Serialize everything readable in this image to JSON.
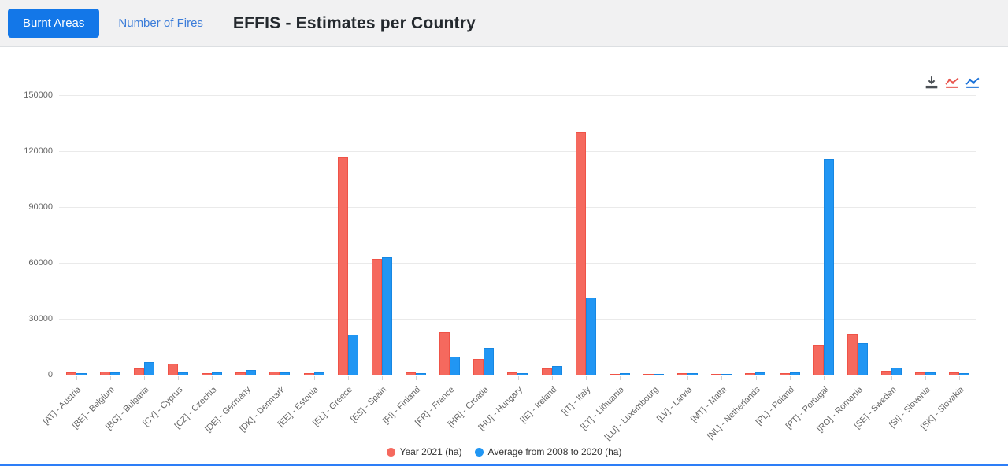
{
  "header": {
    "title": "EFFIS - Estimates per Country",
    "tabs": [
      {
        "label": "Burnt Areas",
        "active": true
      },
      {
        "label": "Number of Fires",
        "active": false
      }
    ]
  },
  "toolbar": {
    "icons": [
      "download-icon",
      "line-chart-red-icon",
      "line-chart-blue-icon"
    ]
  },
  "colors": {
    "accent_blue": "#1377e8",
    "series_red": "#f5695e",
    "series_blue": "#2196f3",
    "header_bg": "#f1f1f2",
    "bottom_bar": "#2d7ef7"
  },
  "chart_data": {
    "type": "bar",
    "title": "EFFIS - Estimates per Country",
    "xlabel": "",
    "ylabel": "",
    "ylim": [
      0,
      150000
    ],
    "yticks": [
      0,
      30000,
      60000,
      90000,
      120000,
      150000
    ],
    "grid": true,
    "legend_position": "bottom",
    "categories": [
      "[AT] - Austria",
      "[BE] - Belgium",
      "[BG] - Bulgaria",
      "[CY] - Cyprus",
      "[CZ] - Czechia",
      "[DE] - Germany",
      "[DK] - Denmark",
      "[EE] - Estonia",
      "[EL] - Greece",
      "[ES] - Spain",
      "[FI] - Finland",
      "[FR] - France",
      "[HR] - Croatia",
      "[HU] - Hungary",
      "[IE] - Ireland",
      "[IT] - Italy",
      "[LT] - Lithuania",
      "[LU] - Luxembourg",
      "[LV] - Latvia",
      "[MT] - Malta",
      "[NL] - Netherlands",
      "[PL] - Poland",
      "[PT] - Portugal",
      "[RO] - Romania",
      "[SE] - Sweden",
      "[SI] - Slovenia",
      "[SK] - Slovakia"
    ],
    "series": [
      {
        "name": "Year 2021 (ha)",
        "color": "#f5695e",
        "values": [
          1500,
          2200,
          4000,
          6500,
          1200,
          1900,
          2000,
          1100,
          117000,
          62500,
          1600,
          23400,
          9000,
          1600,
          3800,
          130700,
          1000,
          800,
          1300,
          900,
          1200,
          1300,
          16500,
          22600,
          2600,
          1500,
          1500
        ]
      },
      {
        "name": "Average from 2008 to 2020 (ha)",
        "color": "#2196f3",
        "values": [
          1200,
          1500,
          7100,
          1900,
          1600,
          2800,
          1500,
          1600,
          21800,
          63500,
          1100,
          10300,
          14700,
          1300,
          5000,
          41800,
          1100,
          900,
          1300,
          1000,
          1700,
          1900,
          116400,
          17200,
          4400,
          1500,
          1300
        ]
      }
    ]
  }
}
